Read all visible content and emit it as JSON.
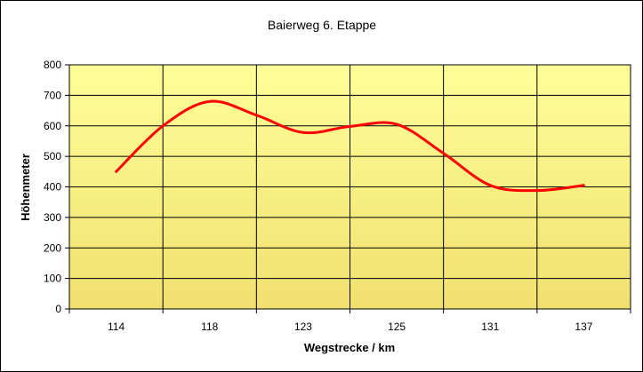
{
  "chart_data": {
    "type": "line",
    "title": "Baierweg 6. Etappe",
    "xlabel": "Wegstrecke / km",
    "ylabel": "Höhenmeter",
    "categories": [
      "114",
      "118",
      "123",
      "125",
      "131",
      "137"
    ],
    "ylim": [
      0,
      800
    ],
    "yticks": [
      "0",
      "100",
      "200",
      "300",
      "400",
      "500",
      "600",
      "700",
      "800"
    ],
    "grid": true,
    "legend": "none",
    "series": [
      {
        "x": [
          0,
          0.5,
          1,
          1.5,
          2,
          2.5,
          3,
          3.5,
          4,
          4.5,
          5
        ],
        "values": [
          450,
          600,
          680,
          635,
          578,
          598,
          605,
          510,
          405,
          388,
          405
        ]
      }
    ],
    "colors": {
      "line": "#ff0000",
      "plot_top": "#ffff99",
      "plot_bottom": "#f0e070",
      "grid": "#000000"
    }
  }
}
